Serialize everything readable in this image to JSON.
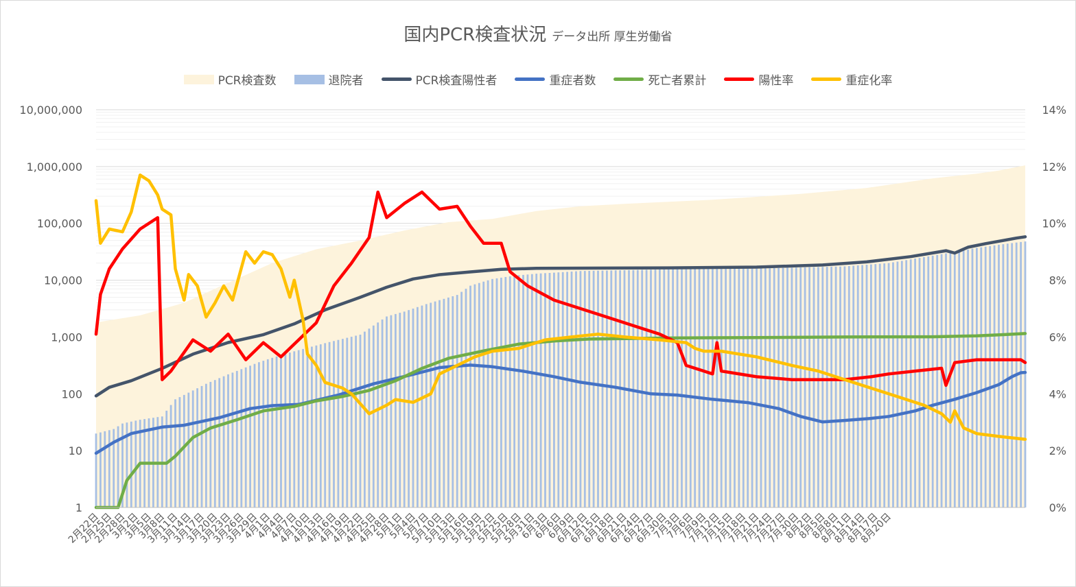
{
  "chart_data": {
    "type": "bar",
    "title": "国内PCR検査状況",
    "subtitle": "データ出所 厚生労働省",
    "y_scale": "log",
    "ylim": [
      1,
      10000000
    ],
    "y_ticks": [
      "1",
      "10",
      "100",
      "1,000",
      "10,000",
      "100,000",
      "1,000,000",
      "10,000,000"
    ],
    "y2lim": [
      0,
      14
    ],
    "y2_ticks": [
      "0%",
      "2%",
      "4%",
      "6%",
      "8%",
      "10%",
      "12%",
      "14%"
    ],
    "x_labels": [
      "2月22日",
      "2月25日",
      "2月28日",
      "3月2日",
      "3月5日",
      "3月8日",
      "3月11日",
      "3月14日",
      "3月17日",
      "3月20日",
      "3月23日",
      "3月26日",
      "3月29日",
      "4月1日",
      "4月4日",
      "4月7日",
      "4月10日",
      "4月13日",
      "4月16日",
      "4月19日",
      "4月22日",
      "4月25日",
      "4月28日",
      "5月1日",
      "5月4日",
      "5月7日",
      "5月10日",
      "5月13日",
      "5月16日",
      "5月19日",
      "5月22日",
      "5月25日",
      "5月28日",
      "5月31日",
      "6月3日",
      "6月6日",
      "6月9日",
      "6月12日",
      "6月15日",
      "6月18日",
      "6月21日",
      "6月24日",
      "6月27日",
      "6月30日",
      "7月3日",
      "7月6日",
      "7月9日",
      "7月12日",
      "7月15日",
      "7月18日",
      "7月21日",
      "7月24日",
      "7月27日",
      "7月30日",
      "8月2日",
      "8月5日",
      "8月8日",
      "8月11日",
      "8月14日",
      "8月17日",
      "8月20日"
    ],
    "legend_position": "top",
    "grid": true,
    "series": [
      {
        "name": "PCR検査数",
        "type": "area",
        "axis": "left",
        "color": "#fdf3dc",
        "points": [
          [
            0,
            1800
          ],
          [
            10,
            2400
          ],
          [
            20,
            4000
          ],
          [
            30,
            9000
          ],
          [
            40,
            20000
          ],
          [
            50,
            35000
          ],
          [
            60,
            50000
          ],
          [
            70,
            75000
          ],
          [
            80,
            105000
          ],
          [
            90,
            120000
          ],
          [
            100,
            165000
          ],
          [
            110,
            200000
          ],
          [
            120,
            220000
          ],
          [
            140,
            260000
          ],
          [
            160,
            330000
          ],
          [
            175,
            420000
          ],
          [
            190,
            620000
          ],
          [
            200,
            750000
          ],
          [
            205,
            850000
          ],
          [
            211,
            1050000
          ]
        ]
      },
      {
        "name": "退院者",
        "type": "bar",
        "axis": "left",
        "color": "#a6bfe4",
        "points": [
          [
            0,
            20
          ],
          [
            4,
            24
          ],
          [
            6,
            30
          ],
          [
            10,
            35
          ],
          [
            15,
            40
          ],
          [
            18,
            80
          ],
          [
            25,
            150
          ],
          [
            30,
            220
          ],
          [
            37,
            360
          ],
          [
            40,
            430
          ],
          [
            45,
            560
          ],
          [
            52,
            780
          ],
          [
            60,
            1100
          ],
          [
            66,
            2300
          ],
          [
            70,
            2800
          ],
          [
            75,
            3800
          ],
          [
            82,
            5500
          ],
          [
            85,
            8000
          ],
          [
            90,
            10500
          ],
          [
            95,
            12000
          ],
          [
            100,
            13000
          ],
          [
            110,
            14500
          ],
          [
            130,
            15500
          ],
          [
            150,
            16000
          ],
          [
            170,
            17500
          ],
          [
            180,
            20000
          ],
          [
            190,
            27000
          ],
          [
            200,
            37000
          ],
          [
            205,
            42000
          ],
          [
            211,
            48000
          ]
        ]
      },
      {
        "name": "PCR検査陽性者",
        "type": "line",
        "axis": "left",
        "color": "#44546a",
        "points": [
          [
            0,
            92
          ],
          [
            3,
            130
          ],
          [
            8,
            170
          ],
          [
            15,
            280
          ],
          [
            22,
            500
          ],
          [
            30,
            800
          ],
          [
            38,
            1100
          ],
          [
            45,
            1700
          ],
          [
            52,
            3000
          ],
          [
            60,
            5000
          ],
          [
            66,
            7500
          ],
          [
            72,
            10500
          ],
          [
            78,
            12500
          ],
          [
            85,
            14000
          ],
          [
            92,
            15500
          ],
          [
            100,
            16200
          ],
          [
            130,
            16500
          ],
          [
            150,
            17000
          ],
          [
            165,
            18500
          ],
          [
            175,
            21000
          ],
          [
            185,
            26000
          ],
          [
            193,
            33000
          ],
          [
            195,
            30000
          ],
          [
            198,
            38000
          ],
          [
            202,
            44000
          ],
          [
            206,
            50000
          ],
          [
            209,
            55000
          ],
          [
            211,
            58000
          ]
        ]
      },
      {
        "name": "重症者数",
        "type": "line",
        "axis": "left",
        "color": "#4472c4",
        "points": [
          [
            0,
            9
          ],
          [
            4,
            14
          ],
          [
            8,
            20
          ],
          [
            15,
            26
          ],
          [
            20,
            28
          ],
          [
            28,
            38
          ],
          [
            35,
            55
          ],
          [
            40,
            62
          ],
          [
            46,
            65
          ],
          [
            55,
            95
          ],
          [
            63,
            150
          ],
          [
            72,
            220
          ],
          [
            78,
            290
          ],
          [
            85,
            320
          ],
          [
            90,
            300
          ],
          [
            97,
            250
          ],
          [
            104,
            200
          ],
          [
            110,
            160
          ],
          [
            118,
            130
          ],
          [
            126,
            100
          ],
          [
            132,
            95
          ],
          [
            140,
            80
          ],
          [
            148,
            70
          ],
          [
            155,
            55
          ],
          [
            160,
            40
          ],
          [
            165,
            32
          ],
          [
            170,
            34
          ],
          [
            176,
            37
          ],
          [
            180,
            40
          ],
          [
            186,
            50
          ],
          [
            190,
            63
          ],
          [
            195,
            80
          ],
          [
            200,
            105
          ],
          [
            205,
            145
          ],
          [
            208,
            200
          ],
          [
            210,
            235
          ],
          [
            211,
            238
          ]
        ]
      },
      {
        "name": "死亡者累計",
        "type": "line",
        "axis": "left",
        "color": "#70ad47",
        "points": [
          [
            0,
            1
          ],
          [
            5,
            1
          ],
          [
            7,
            3
          ],
          [
            10,
            6
          ],
          [
            16,
            6
          ],
          [
            18,
            8
          ],
          [
            22,
            17
          ],
          [
            26,
            25
          ],
          [
            32,
            35
          ],
          [
            38,
            50
          ],
          [
            45,
            60
          ],
          [
            50,
            75
          ],
          [
            56,
            90
          ],
          [
            62,
            115
          ],
          [
            68,
            170
          ],
          [
            74,
            280
          ],
          [
            80,
            420
          ],
          [
            88,
            570
          ],
          [
            96,
            750
          ],
          [
            104,
            850
          ],
          [
            112,
            920
          ],
          [
            120,
            940
          ],
          [
            130,
            960
          ],
          [
            150,
            980
          ],
          [
            170,
            1000
          ],
          [
            190,
            1010
          ],
          [
            200,
            1050
          ],
          [
            206,
            1100
          ],
          [
            211,
            1150
          ]
        ]
      },
      {
        "name": "陽性率",
        "type": "line",
        "axis": "right",
        "color": "#ff0000",
        "points": [
          [
            0,
            6.1
          ],
          [
            1,
            7.5
          ],
          [
            3,
            8.4
          ],
          [
            6,
            9.1
          ],
          [
            10,
            9.8
          ],
          [
            14,
            10.2
          ],
          [
            15,
            4.5
          ],
          [
            17,
            4.8
          ],
          [
            22,
            5.9
          ],
          [
            26,
            5.5
          ],
          [
            30,
            6.1
          ],
          [
            34,
            5.2
          ],
          [
            38,
            5.8
          ],
          [
            42,
            5.3
          ],
          [
            46,
            5.9
          ],
          [
            50,
            6.5
          ],
          [
            54,
            7.8
          ],
          [
            58,
            8.6
          ],
          [
            62,
            9.5
          ],
          [
            64,
            11.1
          ],
          [
            66,
            10.2
          ],
          [
            70,
            10.7
          ],
          [
            74,
            11.1
          ],
          [
            78,
            10.5
          ],
          [
            82,
            10.6
          ],
          [
            85,
            9.9
          ],
          [
            88,
            9.3
          ],
          [
            92,
            9.3
          ],
          [
            94,
            8.3
          ],
          [
            98,
            7.8
          ],
          [
            104,
            7.3
          ],
          [
            110,
            7.0
          ],
          [
            116,
            6.7
          ],
          [
            122,
            6.4
          ],
          [
            128,
            6.1
          ],
          [
            132,
            5.8
          ],
          [
            134,
            5.0
          ],
          [
            138,
            4.8
          ],
          [
            140,
            4.7
          ],
          [
            141,
            5.8
          ],
          [
            142,
            4.8
          ],
          [
            150,
            4.6
          ],
          [
            158,
            4.5
          ],
          [
            164,
            4.5
          ],
          [
            170,
            4.5
          ],
          [
            176,
            4.6
          ],
          [
            180,
            4.7
          ],
          [
            186,
            4.8
          ],
          [
            192,
            4.9
          ],
          [
            193,
            4.3
          ],
          [
            195,
            5.1
          ],
          [
            200,
            5.2
          ],
          [
            206,
            5.2
          ],
          [
            210,
            5.2
          ],
          [
            211,
            5.1
          ]
        ]
      },
      {
        "name": "重症化率",
        "type": "line",
        "axis": "right",
        "color": "#ffc000",
        "points": [
          [
            0,
            10.8
          ],
          [
            1,
            9.3
          ],
          [
            3,
            9.8
          ],
          [
            6,
            9.7
          ],
          [
            8,
            10.4
          ],
          [
            10,
            11.7
          ],
          [
            12,
            11.5
          ],
          [
            14,
            11.0
          ],
          [
            15,
            10.5
          ],
          [
            17,
            10.3
          ],
          [
            18,
            8.4
          ],
          [
            20,
            7.3
          ],
          [
            21,
            8.2
          ],
          [
            23,
            7.8
          ],
          [
            25,
            6.7
          ],
          [
            27,
            7.2
          ],
          [
            29,
            7.8
          ],
          [
            31,
            7.3
          ],
          [
            34,
            9.0
          ],
          [
            36,
            8.6
          ],
          [
            38,
            9.0
          ],
          [
            40,
            8.9
          ],
          [
            42,
            8.4
          ],
          [
            44,
            7.4
          ],
          [
            45,
            8.0
          ],
          [
            47,
            6.6
          ],
          [
            48,
            5.4
          ],
          [
            50,
            5.0
          ],
          [
            52,
            4.4
          ],
          [
            56,
            4.2
          ],
          [
            58,
            4.0
          ],
          [
            62,
            3.3
          ],
          [
            66,
            3.6
          ],
          [
            68,
            3.8
          ],
          [
            72,
            3.7
          ],
          [
            76,
            4.0
          ],
          [
            78,
            4.7
          ],
          [
            82,
            5.0
          ],
          [
            86,
            5.3
          ],
          [
            90,
            5.5
          ],
          [
            96,
            5.6
          ],
          [
            102,
            5.9
          ],
          [
            108,
            6.0
          ],
          [
            114,
            6.1
          ],
          [
            120,
            6.0
          ],
          [
            128,
            5.9
          ],
          [
            134,
            5.8
          ],
          [
            136,
            5.6
          ],
          [
            138,
            5.5
          ],
          [
            142,
            5.5
          ],
          [
            146,
            5.4
          ],
          [
            150,
            5.3
          ],
          [
            158,
            5.0
          ],
          [
            164,
            4.8
          ],
          [
            170,
            4.5
          ],
          [
            176,
            4.2
          ],
          [
            182,
            3.9
          ],
          [
            188,
            3.6
          ],
          [
            192,
            3.3
          ],
          [
            194,
            3.0
          ],
          [
            195,
            3.4
          ],
          [
            197,
            2.8
          ],
          [
            200,
            2.6
          ],
          [
            205,
            2.5
          ],
          [
            211,
            2.4
          ]
        ]
      }
    ]
  }
}
